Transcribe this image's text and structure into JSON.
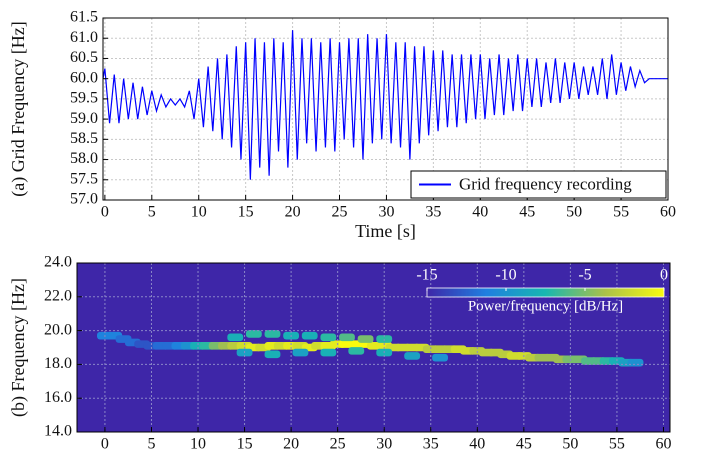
{
  "chart_data": [
    {
      "type": "line",
      "xlabel": "Time [s]",
      "ylabel": "(a) Grid Frequency [Hz]",
      "xlim": [
        -0.2,
        60
      ],
      "ylim": [
        57,
        61.5
      ],
      "xticks": [
        0,
        5,
        10,
        15,
        20,
        25,
        30,
        35,
        40,
        45,
        50,
        55,
        60
      ],
      "yticks": [
        {
          "value": 57,
          "label": "57.0"
        },
        57.5,
        {
          "value": 58,
          "label": "58.0"
        },
        58.5,
        {
          "value": 59,
          "label": "59.0"
        },
        59.5,
        {
          "value": 60,
          "label": "60.0"
        },
        60.5,
        {
          "value": 61,
          "label": "61.0"
        },
        61.5
      ],
      "grid": true,
      "legend": "lower right",
      "x": [
        -0.2,
        0,
        0.5,
        1,
        1.5,
        2,
        2.5,
        3,
        3.5,
        4,
        4.5,
        5,
        5.5,
        6,
        6.5,
        7,
        7.5,
        8,
        8.5,
        9,
        9.5,
        10,
        10.5,
        11,
        11.5,
        12,
        12.5,
        13,
        13.5,
        14,
        14.5,
        15,
        15.5,
        16,
        16.5,
        17,
        17.5,
        18,
        18.5,
        19,
        19.5,
        20,
        20.5,
        21,
        21.5,
        22,
        22.5,
        23,
        23.5,
        24,
        24.5,
        25,
        25.5,
        26,
        26.5,
        27,
        27.5,
        28,
        28.5,
        29,
        29.5,
        30,
        30.5,
        31,
        31.5,
        32,
        32.5,
        33,
        33.5,
        34,
        34.5,
        35,
        35.5,
        36,
        36.5,
        37,
        37.5,
        38,
        38.5,
        39,
        39.5,
        40,
        40.5,
        41,
        41.5,
        42,
        42.5,
        43,
        43.5,
        44,
        44.5,
        45,
        45.5,
        46,
        46.5,
        47,
        47.5,
        48,
        48.5,
        49,
        49.5,
        50,
        50.5,
        51,
        51.5,
        52,
        52.5,
        53,
        53.5,
        54,
        54.5,
        55,
        55.5,
        56,
        56.5,
        57,
        57.5,
        58,
        60
      ],
      "series": [
        {
          "name": "Grid frequency recording",
          "color": "#0000ff",
          "values": [
            60.0,
            60.25,
            58.9,
            60.1,
            58.9,
            60.0,
            59.0,
            59.9,
            59.0,
            59.8,
            59.1,
            59.7,
            59.2,
            59.6,
            59.3,
            59.5,
            59.35,
            59.5,
            59.3,
            59.7,
            59.0,
            60.0,
            58.8,
            60.3,
            58.7,
            60.5,
            58.5,
            60.6,
            58.3,
            60.8,
            58.0,
            60.9,
            57.5,
            61.0,
            57.8,
            60.9,
            57.6,
            61.0,
            58.2,
            60.9,
            57.8,
            61.2,
            58.0,
            61.0,
            58.4,
            61.0,
            58.2,
            60.9,
            58.3,
            61.0,
            58.2,
            60.9,
            58.5,
            61.0,
            58.3,
            61.0,
            58.0,
            61.1,
            58.4,
            61.0,
            58.5,
            61.1,
            58.4,
            60.9,
            58.3,
            60.9,
            58.0,
            60.8,
            58.4,
            60.8,
            58.6,
            60.7,
            58.7,
            60.7,
            58.8,
            60.6,
            58.8,
            60.6,
            58.9,
            60.6,
            59.0,
            60.6,
            59.0,
            60.5,
            59.1,
            60.6,
            59.1,
            60.5,
            59.2,
            60.6,
            59.2,
            60.5,
            59.3,
            60.5,
            59.3,
            60.4,
            59.4,
            60.5,
            59.4,
            60.4,
            59.5,
            60.4,
            59.5,
            60.3,
            59.6,
            60.3,
            59.6,
            60.5,
            59.5,
            60.6,
            59.6,
            60.4,
            59.7,
            60.3,
            59.8,
            60.2,
            59.9,
            60.0,
            60.0
          ]
        }
      ]
    },
    {
      "type": "spectrogram",
      "xlabel": "Time [s]",
      "ylabel": "(b) Frequency [Hz]",
      "xlim": [
        -3,
        60.7
      ],
      "ylim": [
        14,
        24
      ],
      "xticks": [
        0,
        5,
        10,
        15,
        20,
        25,
        30,
        35,
        40,
        45,
        50,
        55,
        60
      ],
      "yticks": [
        {
          "value": 14,
          "label": "14.0"
        },
        {
          "value": 16,
          "label": "16.0"
        },
        {
          "value": 18,
          "label": "18.0"
        },
        {
          "value": 20,
          "label": "20.0"
        },
        {
          "value": 22,
          "label": "22.0"
        },
        {
          "value": 24,
          "label": "24.0"
        }
      ],
      "grid": true,
      "clim": [
        -15,
        0
      ],
      "cticks": [
        -15,
        -10,
        -5,
        0
      ],
      "clabel": "Power/frequency [dB/Hz]",
      "colormap": [
        "#3e26a8",
        "#1f7fe0",
        "#18b8b0",
        "#aac04a",
        "#f9fb0e"
      ],
      "x": [
        0,
        1,
        2,
        3,
        4,
        5,
        6,
        7,
        8,
        9,
        10,
        11,
        12,
        13,
        14,
        15,
        16,
        17,
        18,
        19,
        20,
        21,
        22,
        23,
        24,
        25,
        26,
        27,
        28,
        29,
        30,
        31,
        32,
        33,
        34,
        35,
        36,
        37,
        38,
        39,
        40,
        41,
        42,
        43,
        44,
        45,
        46,
        47,
        48,
        49,
        50,
        51,
        52,
        53,
        54,
        55,
        56,
        57,
        14,
        16,
        18,
        20,
        22,
        24,
        26,
        28,
        30,
        15,
        18,
        21,
        24,
        27,
        30,
        33,
        36
      ],
      "y": [
        19.7,
        19.7,
        19.5,
        19.3,
        19.2,
        19.1,
        19.1,
        19.1,
        19.1,
        19.1,
        19.1,
        19.1,
        19.1,
        19.1,
        19.1,
        19.1,
        19.0,
        19.0,
        19.1,
        19.1,
        19.1,
        19.1,
        19.0,
        19.1,
        19.1,
        19.2,
        19.2,
        19.2,
        19.2,
        19.1,
        19.1,
        19.0,
        19.0,
        19.0,
        19.0,
        18.9,
        18.9,
        18.9,
        18.9,
        18.8,
        18.8,
        18.7,
        18.7,
        18.6,
        18.5,
        18.5,
        18.4,
        18.4,
        18.4,
        18.3,
        18.3,
        18.3,
        18.2,
        18.2,
        18.2,
        18.2,
        18.1,
        18.1,
        19.6,
        19.8,
        19.8,
        19.7,
        19.7,
        19.6,
        19.6,
        19.5,
        19.5,
        18.7,
        18.6,
        18.7,
        18.7,
        18.8,
        18.7,
        18.5,
        18.4
      ],
      "values": [
        -11,
        -11,
        -12,
        -12,
        -13,
        -13,
        -12,
        -12,
        -11,
        -10,
        -8,
        -7,
        -5,
        -4,
        -3,
        -2,
        -1,
        -2,
        -1,
        -2,
        -1,
        -2,
        -1,
        -2,
        -1,
        -1,
        0,
        0,
        0,
        -1,
        -1,
        -2,
        -2,
        -2,
        -2,
        -3,
        -3,
        -3,
        -2,
        -2,
        -3,
        -3,
        -3,
        -3,
        -2,
        -2,
        -3,
        -4,
        -4,
        -4,
        -5,
        -5,
        -6,
        -6,
        -7,
        -8,
        -9,
        -10,
        -8,
        -7,
        -7,
        -8,
        -8,
        -7,
        -6,
        -5,
        -7,
        -9,
        -8,
        -9,
        -8,
        -7,
        -8,
        -9,
        -10
      ]
    }
  ]
}
